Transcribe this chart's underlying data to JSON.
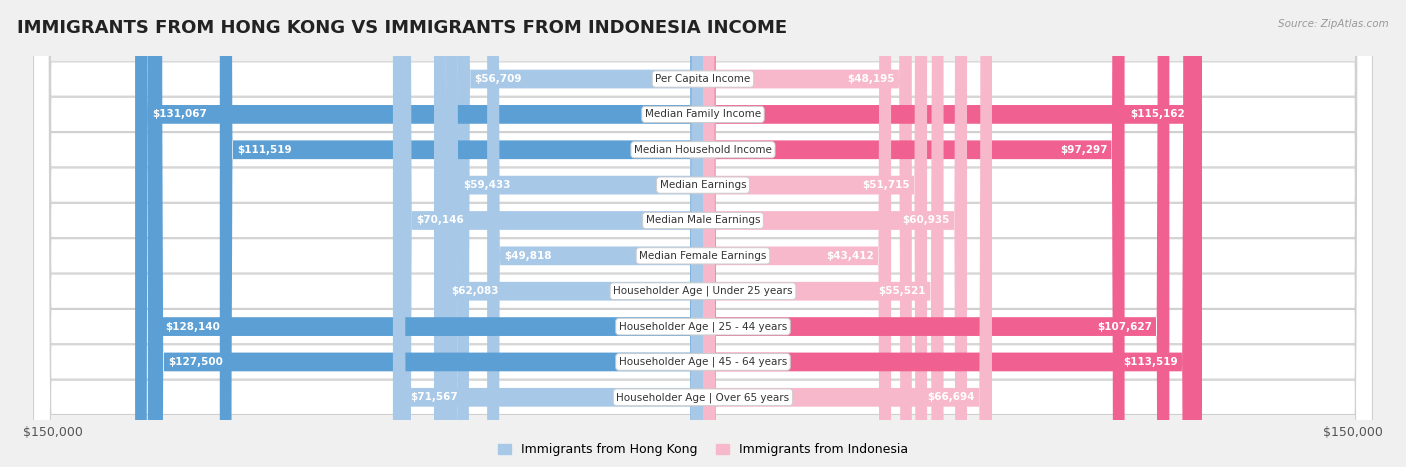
{
  "title": "IMMIGRANTS FROM HONG KONG VS IMMIGRANTS FROM INDONESIA INCOME",
  "source": "Source: ZipAtlas.com",
  "categories": [
    "Per Capita Income",
    "Median Family Income",
    "Median Household Income",
    "Median Earnings",
    "Median Male Earnings",
    "Median Female Earnings",
    "Householder Age | Under 25 years",
    "Householder Age | 25 - 44 years",
    "Householder Age | 45 - 64 years",
    "Householder Age | Over 65 years"
  ],
  "hong_kong_values": [
    56709,
    131067,
    111519,
    59433,
    70146,
    49818,
    62083,
    128140,
    127500,
    71567
  ],
  "indonesia_values": [
    48195,
    115162,
    97297,
    51715,
    60935,
    43412,
    55521,
    107627,
    113519,
    66694
  ],
  "hong_kong_labels": [
    "$56,709",
    "$131,067",
    "$111,519",
    "$59,433",
    "$70,146",
    "$49,818",
    "$62,083",
    "$128,140",
    "$127,500",
    "$71,567"
  ],
  "indonesia_labels": [
    "$48,195",
    "$115,162",
    "$97,297",
    "$51,715",
    "$60,935",
    "$43,412",
    "$55,521",
    "$107,627",
    "$113,519",
    "$66,694"
  ],
  "hk_color_light": "#a8c8e8",
  "hk_color_dark": "#5b9fd4",
  "id_color_light": "#f7b8cc",
  "id_color_dark": "#f06090",
  "hk_threshold": 90000,
  "id_threshold": 90000,
  "max_value": 150000,
  "legend_hk": "Immigrants from Hong Kong",
  "legend_id": "Immigrants from Indonesia",
  "background_color": "#f0f0f0",
  "row_bg_color": "#ffffff",
  "title_fontsize": 13,
  "label_fontsize": 8.5,
  "inside_label_threshold": 30000
}
